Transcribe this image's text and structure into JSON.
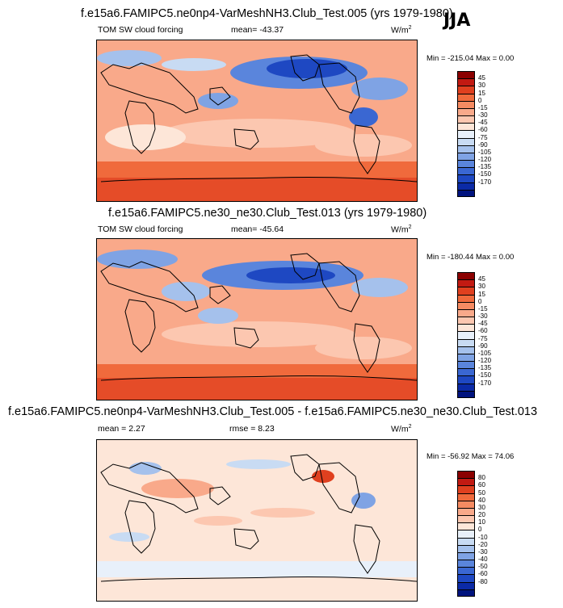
{
  "season": "JJA",
  "panels": [
    {
      "id": "p1",
      "title": "f.e15a6.FAMIPC5.ne0np4-VarMeshNH3.Club_Test.005 (yrs 1979-1980)",
      "left_label": "TOM SW cloud forcing",
      "center_label": "mean= -43.37",
      "units_base": "W/m",
      "units_exp": "2",
      "minmax": "Min = -215.04 Max =   0.00",
      "colorbar": {
        "colors": [
          "#8b0000",
          "#c21a12",
          "#e0401f",
          "#f06a3c",
          "#f58b62",
          "#f9a98a",
          "#fcc7b0",
          "#fde6d8",
          "#e8f0fa",
          "#c8dbf3",
          "#a5c1ec",
          "#7fa3e4",
          "#5a85dc",
          "#3a67d2",
          "#1e48c2",
          "#0b2aa6",
          "#00137e"
        ],
        "labels": [
          "45",
          "30",
          "15",
          "0",
          "-15",
          "-30",
          "-45",
          "-60",
          "-75",
          "-90",
          "-105",
          "-120",
          "-135",
          "-150",
          "-170"
        ]
      }
    },
    {
      "id": "p2",
      "title": "f.e15a6.FAMIPC5.ne30_ne30.Club_Test.013 (yrs 1979-1980)",
      "left_label": "TOM SW cloud forcing",
      "center_label": "mean= -45.64",
      "units_base": "W/m",
      "units_exp": "2",
      "minmax": "Min = -180.44 Max =   0.00",
      "colorbar": {
        "colors": [
          "#8b0000",
          "#c21a12",
          "#e0401f",
          "#f06a3c",
          "#f58b62",
          "#f9a98a",
          "#fcc7b0",
          "#fde6d8",
          "#e8f0fa",
          "#c8dbf3",
          "#a5c1ec",
          "#7fa3e4",
          "#5a85dc",
          "#3a67d2",
          "#1e48c2",
          "#0b2aa6",
          "#00137e"
        ],
        "labels": [
          "45",
          "30",
          "15",
          "0",
          "-15",
          "-30",
          "-45",
          "-60",
          "-75",
          "-90",
          "-105",
          "-120",
          "-135",
          "-150",
          "-170"
        ]
      }
    },
    {
      "id": "p3",
      "title": "f.e15a6.FAMIPC5.ne0np4-VarMeshNH3.Club_Test.005 - f.e15a6.FAMIPC5.ne30_ne30.Club_Test.013",
      "left_label": "mean =   2.27",
      "center_label": "rmse =   8.23",
      "units_base": "W/m",
      "units_exp": "2",
      "minmax": "Min = -56.92 Max =  74.06",
      "colorbar": {
        "colors": [
          "#8b0000",
          "#c21a12",
          "#e0401f",
          "#f06a3c",
          "#f58b62",
          "#f9a98a",
          "#fcc7b0",
          "#fde6d8",
          "#e8f0fa",
          "#c8dbf3",
          "#a5c1ec",
          "#7fa3e4",
          "#5a85dc",
          "#3a67d2",
          "#1e48c2",
          "#0b2aa6",
          "#00137e"
        ],
        "labels": [
          "80",
          "60",
          "50",
          "40",
          "30",
          "20",
          "10",
          "0",
          "-10",
          "-20",
          "-30",
          "-40",
          "-50",
          "-60",
          "-80"
        ]
      }
    }
  ]
}
